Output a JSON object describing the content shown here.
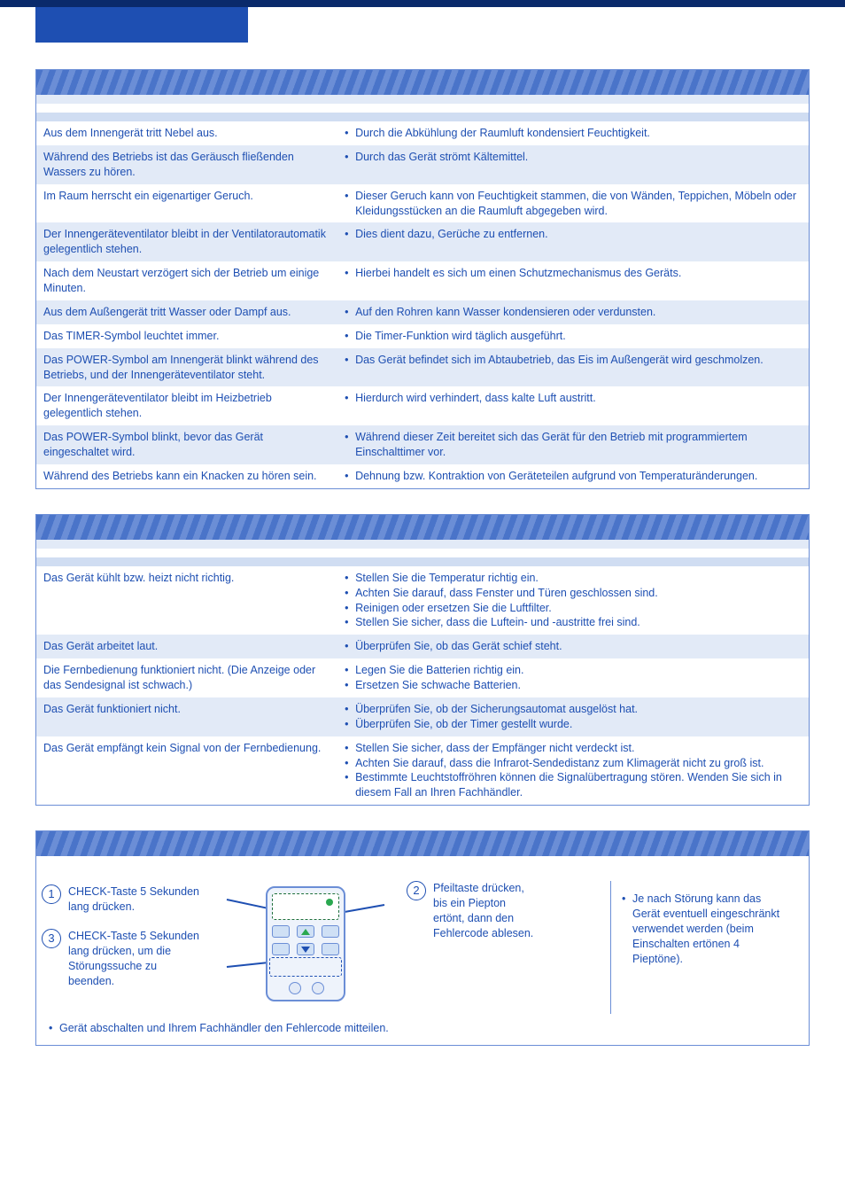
{
  "colors": {
    "primary": "#1e4fb2",
    "border": "#6b8ed6",
    "row_alt": "#e2eaf7",
    "header_stripe_a": "#4a74c9",
    "header_stripe_b": "#6b8ed6",
    "top_bar": "#0a2a6b",
    "green": "#2aa850"
  },
  "section1": {
    "rows": [
      {
        "symptom": "Aus dem Innengerät tritt Nebel aus.",
        "explain": [
          "Durch die Abkühlung der Raumluft kondensiert Feuchtigkeit."
        ]
      },
      {
        "symptom": "Während des Betriebs ist das Geräusch fließenden Wassers zu hören.",
        "explain": [
          "Durch das Gerät strömt Kältemittel."
        ]
      },
      {
        "symptom": "Im Raum herrscht ein eigenartiger Geruch.",
        "explain": [
          "Dieser Geruch kann von Feuchtigkeit stammen, die von Wänden, Teppichen, Möbeln oder Kleidungsstücken an die Raumluft abgegeben wird."
        ]
      },
      {
        "symptom": "Der Innengeräteventilator bleibt in der Ventilatorautomatik gelegentlich stehen.",
        "explain": [
          "Dies dient dazu, Gerüche zu entfernen."
        ]
      },
      {
        "symptom": "Nach dem Neustart verzögert sich der Betrieb um einige Minuten.",
        "explain": [
          "Hierbei handelt es sich um einen Schutzmechanismus des Geräts."
        ]
      },
      {
        "symptom": "Aus dem Außengerät tritt Wasser oder Dampf aus.",
        "explain": [
          "Auf den Rohren kann Wasser kondensieren oder verdunsten."
        ]
      },
      {
        "symptom": "Das TIMER-Symbol leuchtet immer.",
        "explain": [
          "Die Timer-Funktion wird täglich ausgeführt."
        ]
      },
      {
        "symptom": "Das POWER-Symbol am Innengerät blinkt während des Betriebs, und der Innengeräteventilator steht.",
        "explain": [
          "Das Gerät befindet sich im Abtaubetrieb, das Eis im Außengerät wird geschmolzen."
        ]
      },
      {
        "symptom": "Der Innengeräteventilator bleibt im Heizbetrieb gelegentlich stehen.",
        "explain": [
          "Hierdurch wird verhindert, dass kalte Luft austritt."
        ]
      },
      {
        "symptom": "Das POWER-Symbol blinkt, bevor das Gerät eingeschaltet wird.",
        "explain": [
          "Während dieser Zeit bereitet sich das Gerät für den Betrieb mit programmiertem Einschalttimer vor."
        ]
      },
      {
        "symptom": "Während des Betriebs kann ein Knacken zu hören sein.",
        "explain": [
          "Dehnung bzw. Kontraktion von Geräteteilen aufgrund von Temperaturänderungen."
        ]
      }
    ]
  },
  "section2": {
    "rows": [
      {
        "symptom": "Das Gerät kühlt bzw. heizt nicht richtig.",
        "explain": [
          "Stellen Sie die Temperatur richtig ein.",
          "Achten Sie darauf, dass Fenster und Türen geschlossen sind.",
          "Reinigen oder ersetzen Sie die Luftfilter.",
          "Stellen Sie sicher, dass die Luftein- und -austritte frei sind."
        ]
      },
      {
        "symptom": "Das Gerät arbeitet laut.",
        "explain": [
          "Überprüfen Sie, ob das Gerät schief steht."
        ]
      },
      {
        "symptom": "Die Fernbedienung funktioniert nicht.\n(Die Anzeige oder das Sendesignal ist schwach.)",
        "explain": [
          "Legen Sie die Batterien richtig ein.",
          "Ersetzen Sie schwache Batterien."
        ]
      },
      {
        "symptom": "Das Gerät funktioniert nicht.",
        "explain": [
          "Überprüfen Sie, ob der Sicherungsautomat ausgelöst hat.",
          "Überprüfen Sie, ob der Timer gestellt wurde."
        ]
      },
      {
        "symptom": "Das Gerät empfängt kein Signal von der Fernbedienung.",
        "explain": [
          "Stellen Sie sicher, dass der Empfänger nicht verdeckt ist.",
          "Achten Sie darauf, dass die Infrarot-Sendedistanz zum Klimagerät nicht zu groß ist.",
          "Bestimmte Leuchtstoffröhren können die Signalübertragung stören. Wenden Sie sich in diesem Fall an Ihren Fachhändler."
        ]
      }
    ]
  },
  "section3": {
    "step1": {
      "num": "1",
      "text": "CHECK-Taste 5 Sekunden lang drücken."
    },
    "step2": {
      "num": "2",
      "text": "Pfeiltaste drücken, bis ein Piepton ertönt, dann den Fehlercode ablesen."
    },
    "step3": {
      "num": "3",
      "text": "CHECK-Taste 5 Sekunden lang drücken, um die Störungssuche zu beenden."
    },
    "note": "Je nach Störung kann das Gerät eventuell eingeschränkt verwendet werden (beim Einschalten ertönen 4 Pieptöne).",
    "footnote": "Gerät abschalten und Ihrem Fachhändler den Fehlercode mitteilen."
  }
}
